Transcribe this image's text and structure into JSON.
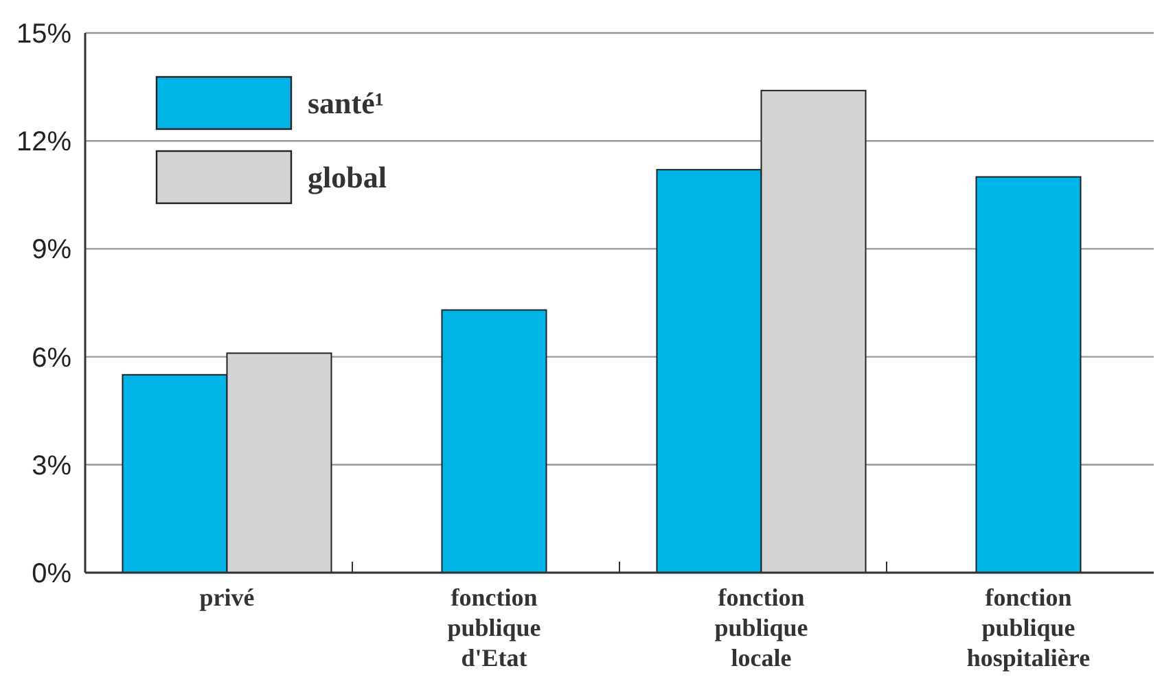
{
  "chart_data": {
    "type": "bar",
    "categories": [
      "privé",
      "fonction publique d'Etat",
      "fonction publique locale",
      "fonction publique hospitalière"
    ],
    "series": [
      {
        "name": "santé¹",
        "color": "#00b4e8",
        "values": [
          5.5,
          7.3,
          11.2,
          11.0
        ]
      },
      {
        "name": "global",
        "color": "#d4d4d6",
        "values": [
          6.1,
          null,
          13.4,
          null
        ]
      }
    ],
    "ylim": [
      0,
      15
    ],
    "yticks": [
      {
        "value": 0,
        "label": "0%"
      },
      {
        "value": 3,
        "label": "3%"
      },
      {
        "value": 6,
        "label": "6%"
      },
      {
        "value": 9,
        "label": "9%"
      },
      {
        "value": 12,
        "label": "12%"
      },
      {
        "value": 15,
        "label": "15%"
      }
    ],
    "grid": "y",
    "legend": "top left"
  }
}
